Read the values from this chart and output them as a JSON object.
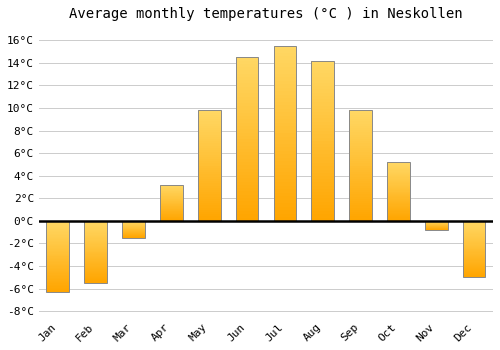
{
  "months": [
    "Jan",
    "Feb",
    "Mar",
    "Apr",
    "May",
    "Jun",
    "Jul",
    "Aug",
    "Sep",
    "Oct",
    "Nov",
    "Dec"
  ],
  "temperatures": [
    -6.3,
    -5.5,
    -1.5,
    3.2,
    9.8,
    14.5,
    15.5,
    14.2,
    9.8,
    5.2,
    -0.8,
    -5.0
  ],
  "bar_color_bottom": "#FFA500",
  "bar_color_top": "#FFD966",
  "bar_edge_color": "#888888",
  "title": "Average monthly temperatures (°C ) in Neskollen",
  "ylim": [
    -8.5,
    17
  ],
  "yticks": [
    -8,
    -6,
    -4,
    -2,
    0,
    2,
    4,
    6,
    8,
    10,
    12,
    14,
    16
  ],
  "ytick_labels": [
    "-8°C",
    "-6°C",
    "-4°C",
    "-2°C",
    "0°C",
    "2°C",
    "4°C",
    "6°C",
    "8°C",
    "10°C",
    "12°C",
    "14°C",
    "16°C"
  ],
  "bg_color": "#ffffff",
  "grid_color": "#cccccc",
  "title_fontsize": 10,
  "tick_fontsize": 8,
  "bar_width": 0.6
}
